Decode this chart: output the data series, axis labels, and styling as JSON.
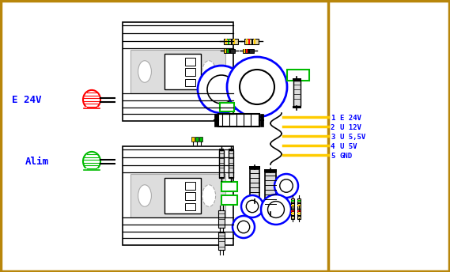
{
  "bg_color": "#ffffff",
  "border_color": "#b8860b",
  "black": "#000000",
  "red": "#ff0000",
  "green": "#00bb00",
  "blue": "#0000ff",
  "yellow": "#ffcc00",
  "gray": "#aaaaaa",
  "light_gray": "#dddddd",
  "fig_width": 5.69,
  "fig_height": 3.44,
  "dpi": 100,
  "label_e24v": "E 24V",
  "label_alim": "Alim",
  "conn_labels": [
    "E 24V",
    "U 12V",
    "U 5,5V",
    "U 5V",
    "GND"
  ]
}
